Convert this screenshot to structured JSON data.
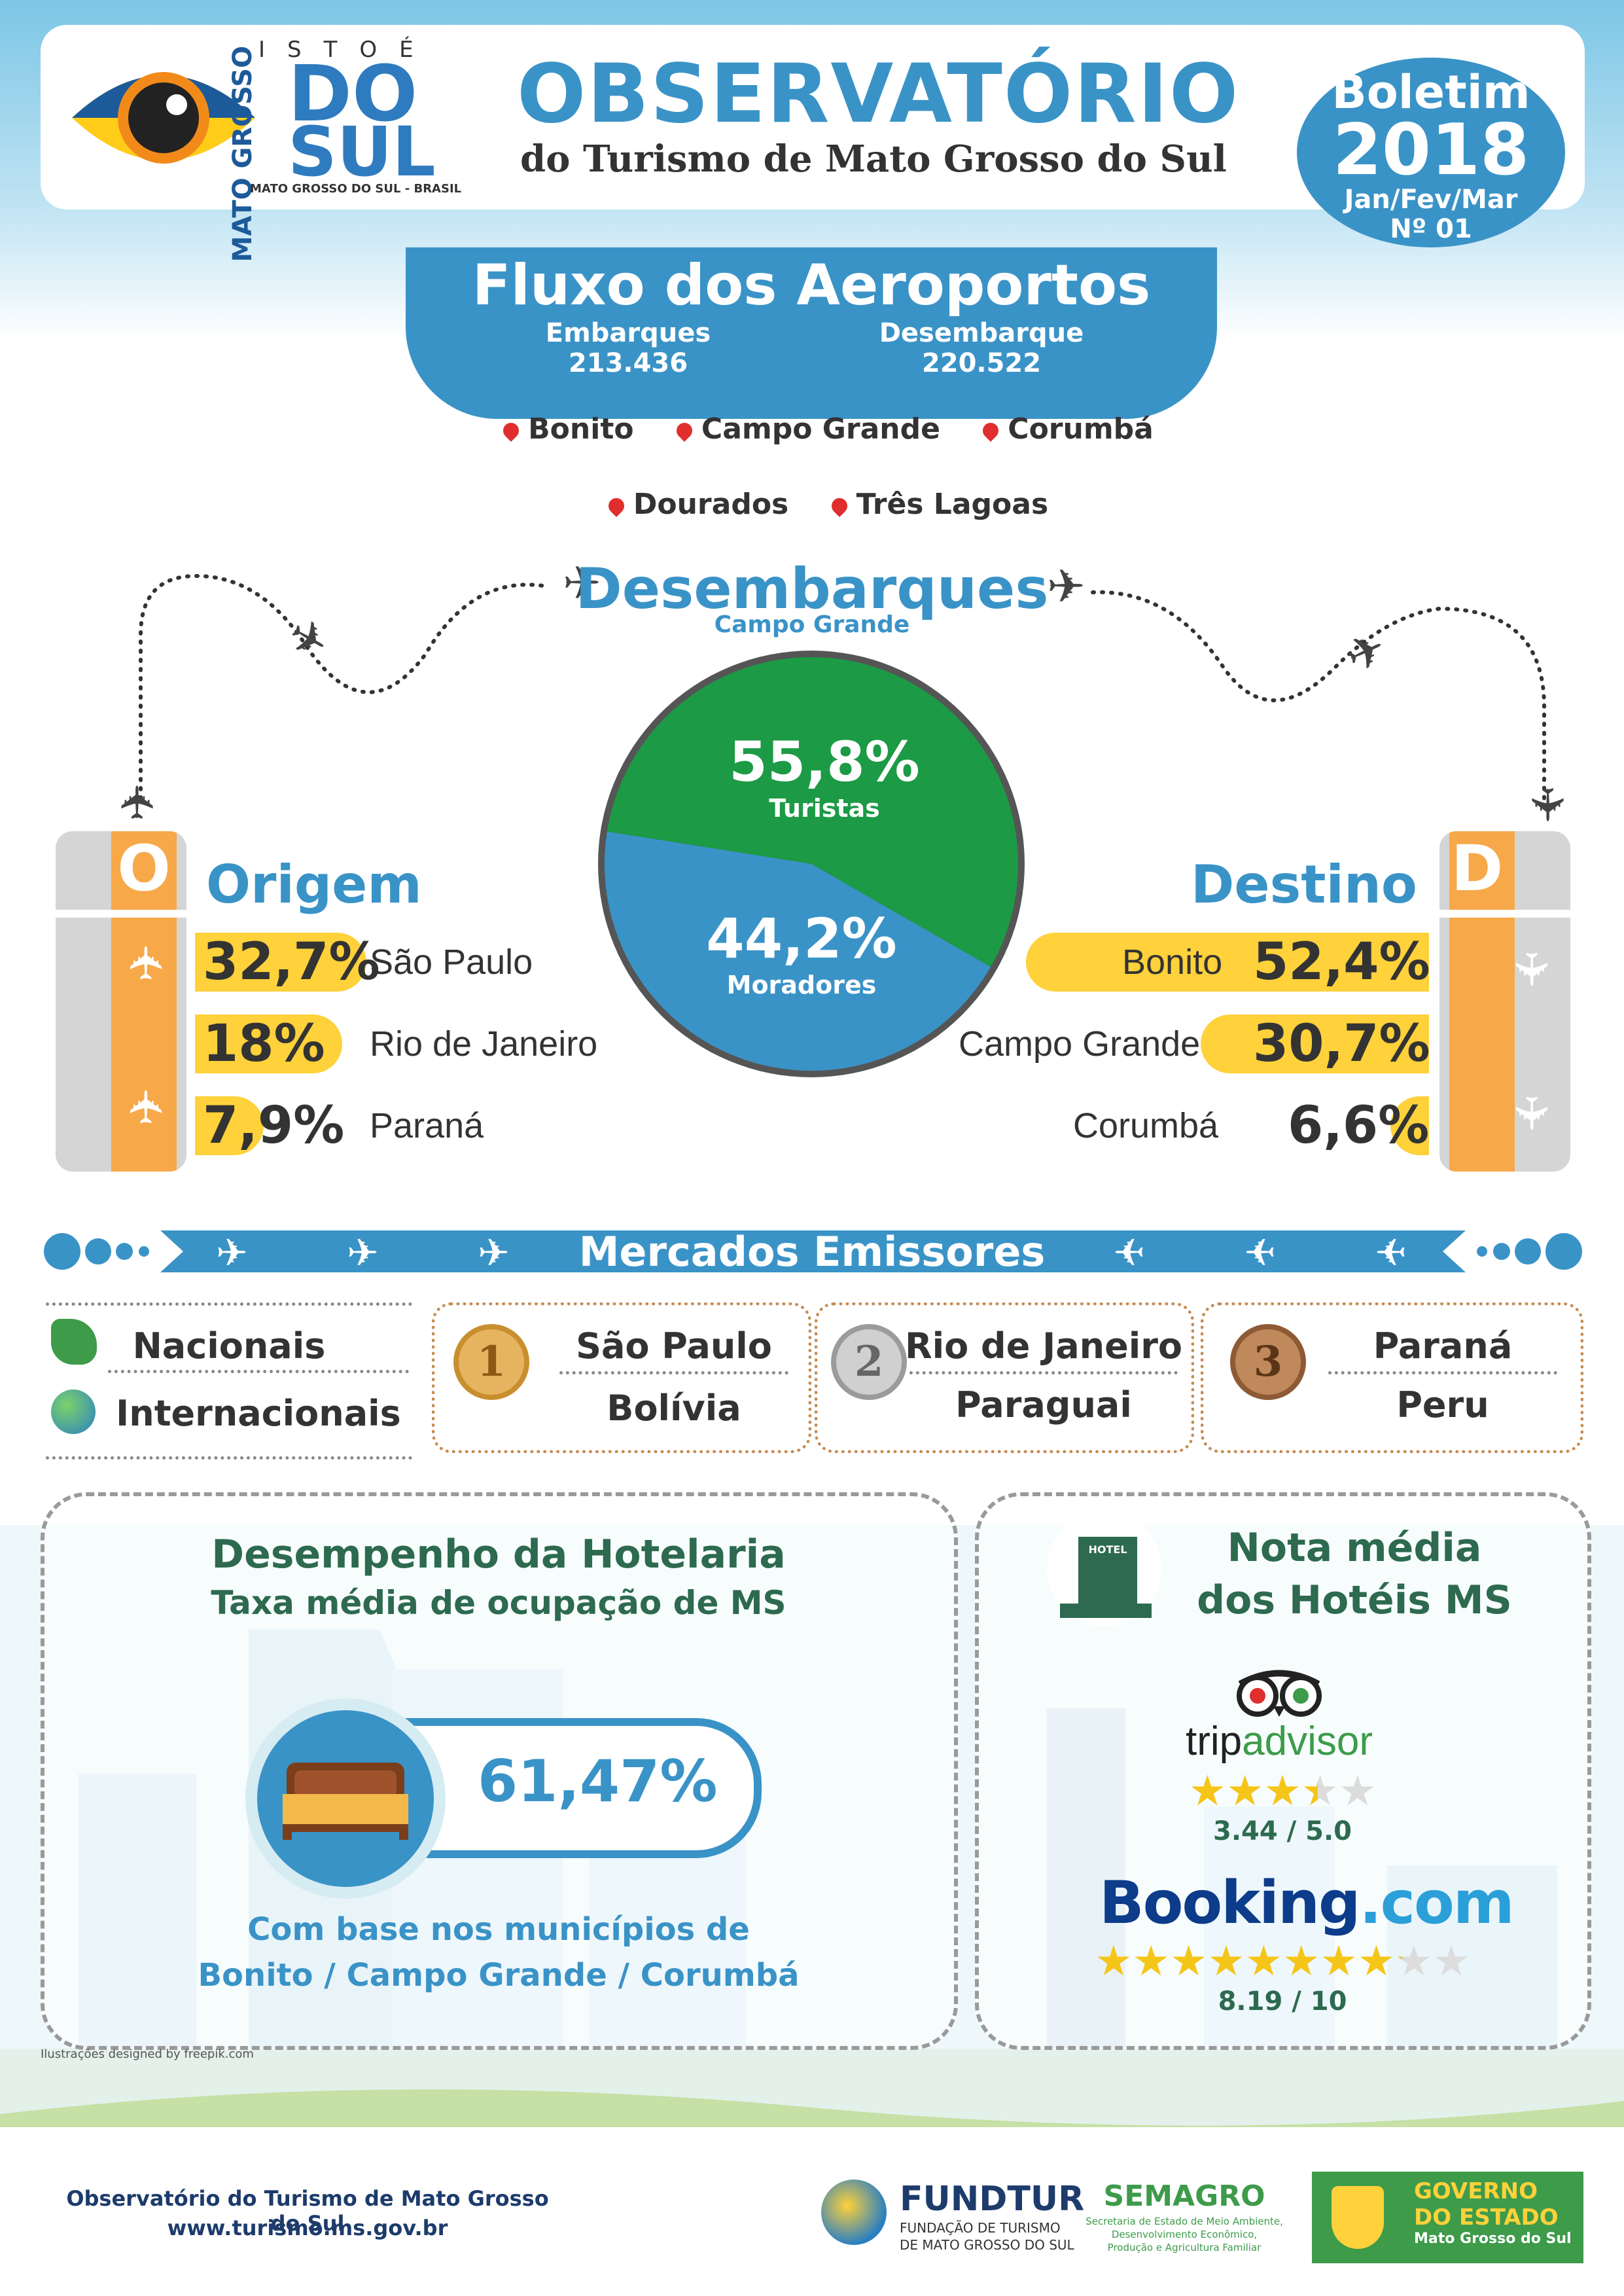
{
  "header": {
    "logo_top": "ISTOÉ",
    "logo_mato_grosso": "MATO GROSSO",
    "logo_do": "DO",
    "logo_sul": "SUL",
    "logo_sub": "MATO GROSSO DO SUL - BRASIL",
    "title": "OBSERVATÓRIO",
    "subtitle": "do Turismo de Mato Grosso do Sul",
    "boletim": {
      "label": "Boletim",
      "year": "2018",
      "period": "Jan/Fev/Mar",
      "number": "Nº 01"
    }
  },
  "fluxo": {
    "title": "Fluxo dos Aeroportos",
    "embarques_label": "Embarques",
    "embarques_value": "213.436",
    "desembarque_label": "Desembarque",
    "desembarque_value": "220.522",
    "airports": [
      "Bonito",
      "Campo Grande",
      "Corumbá",
      "Dourados",
      "Três Lagoas"
    ]
  },
  "desembarques": {
    "title": "Desembarques",
    "subtitle": "Campo Grande",
    "chart_data": {
      "type": "pie",
      "slices": [
        {
          "label": "Turistas",
          "value": 55.8,
          "display": "55,8%",
          "color": "#1c9a45"
        },
        {
          "label": "Moradores",
          "value": 44.2,
          "display": "44,2%",
          "color": "#3a93c7"
        }
      ]
    }
  },
  "origem": {
    "letter": "O",
    "title": "Origem",
    "items": [
      {
        "pct": "32,7%",
        "place": "São Paulo",
        "value": 32.7
      },
      {
        "pct": "18%",
        "place": "Rio de Janeiro",
        "value": 18
      },
      {
        "pct": "7,9%",
        "place": "Paraná",
        "value": 7.9
      }
    ]
  },
  "destino": {
    "letter": "D",
    "title": "Destino",
    "items": [
      {
        "pct": "52,4%",
        "place": "Bonito",
        "value": 52.4
      },
      {
        "pct": "30,7%",
        "place": "Campo Grande",
        "value": 30.7
      },
      {
        "pct": "6,6%",
        "place": "Corumbá",
        "value": 6.6
      }
    ]
  },
  "mercados": {
    "title": "Mercados Emissores",
    "types": [
      "Nacionais",
      "Internacionais"
    ],
    "ranks": [
      {
        "n": "1",
        "nacional": "São Paulo",
        "internacional": "Bolívia"
      },
      {
        "n": "2",
        "nacional": "Rio de Janeiro",
        "internacional": "Paraguai"
      },
      {
        "n": "3",
        "nacional": "Paraná",
        "internacional": "Peru"
      }
    ]
  },
  "hotelaria": {
    "title": "Desempenho da Hotelaria",
    "subtitle": "Taxa média de ocupação de MS",
    "value": "61,47%",
    "note1": "Com base nos municípios de",
    "note2": "Bonito / Campo Grande  / Corumbá",
    "credit": "Ilustrações designed by  freepik.com"
  },
  "nota": {
    "title1": "Nota média",
    "title2": "dos Hotéis MS",
    "hotel_sign": "HOTEL",
    "tripadvisor": {
      "name_trip": "trip",
      "name_advisor": "advisor",
      "score": "3.44 / 5.0",
      "rating": 3.44,
      "max": 5
    },
    "booking": {
      "name_booking": "Booking",
      "name_com": ".com",
      "score": "8.19 / 10",
      "rating": 8.19,
      "max": 10
    }
  },
  "footer": {
    "line1": "Observatório do Turismo de Mato Grosso do Sul",
    "line2": "www.turismo.ms.gov.br",
    "fundtur": "FUNDTUR",
    "fundtur_sub1": "FUNDAÇÃO DE TURISMO",
    "fundtur_sub2": "DE MATO GROSSO DO SUL",
    "semagro": "SEMAGRO",
    "semagro_sub1": "Secretaria de Estado de Meio Ambiente,",
    "semagro_sub2": "Desenvolvimento Econômico,",
    "semagro_sub3": "Produção e Agricultura Familiar",
    "gov1": "GOVERNO",
    "gov2": "DO ESTADO",
    "gov3": "Mato Grosso do Sul"
  }
}
